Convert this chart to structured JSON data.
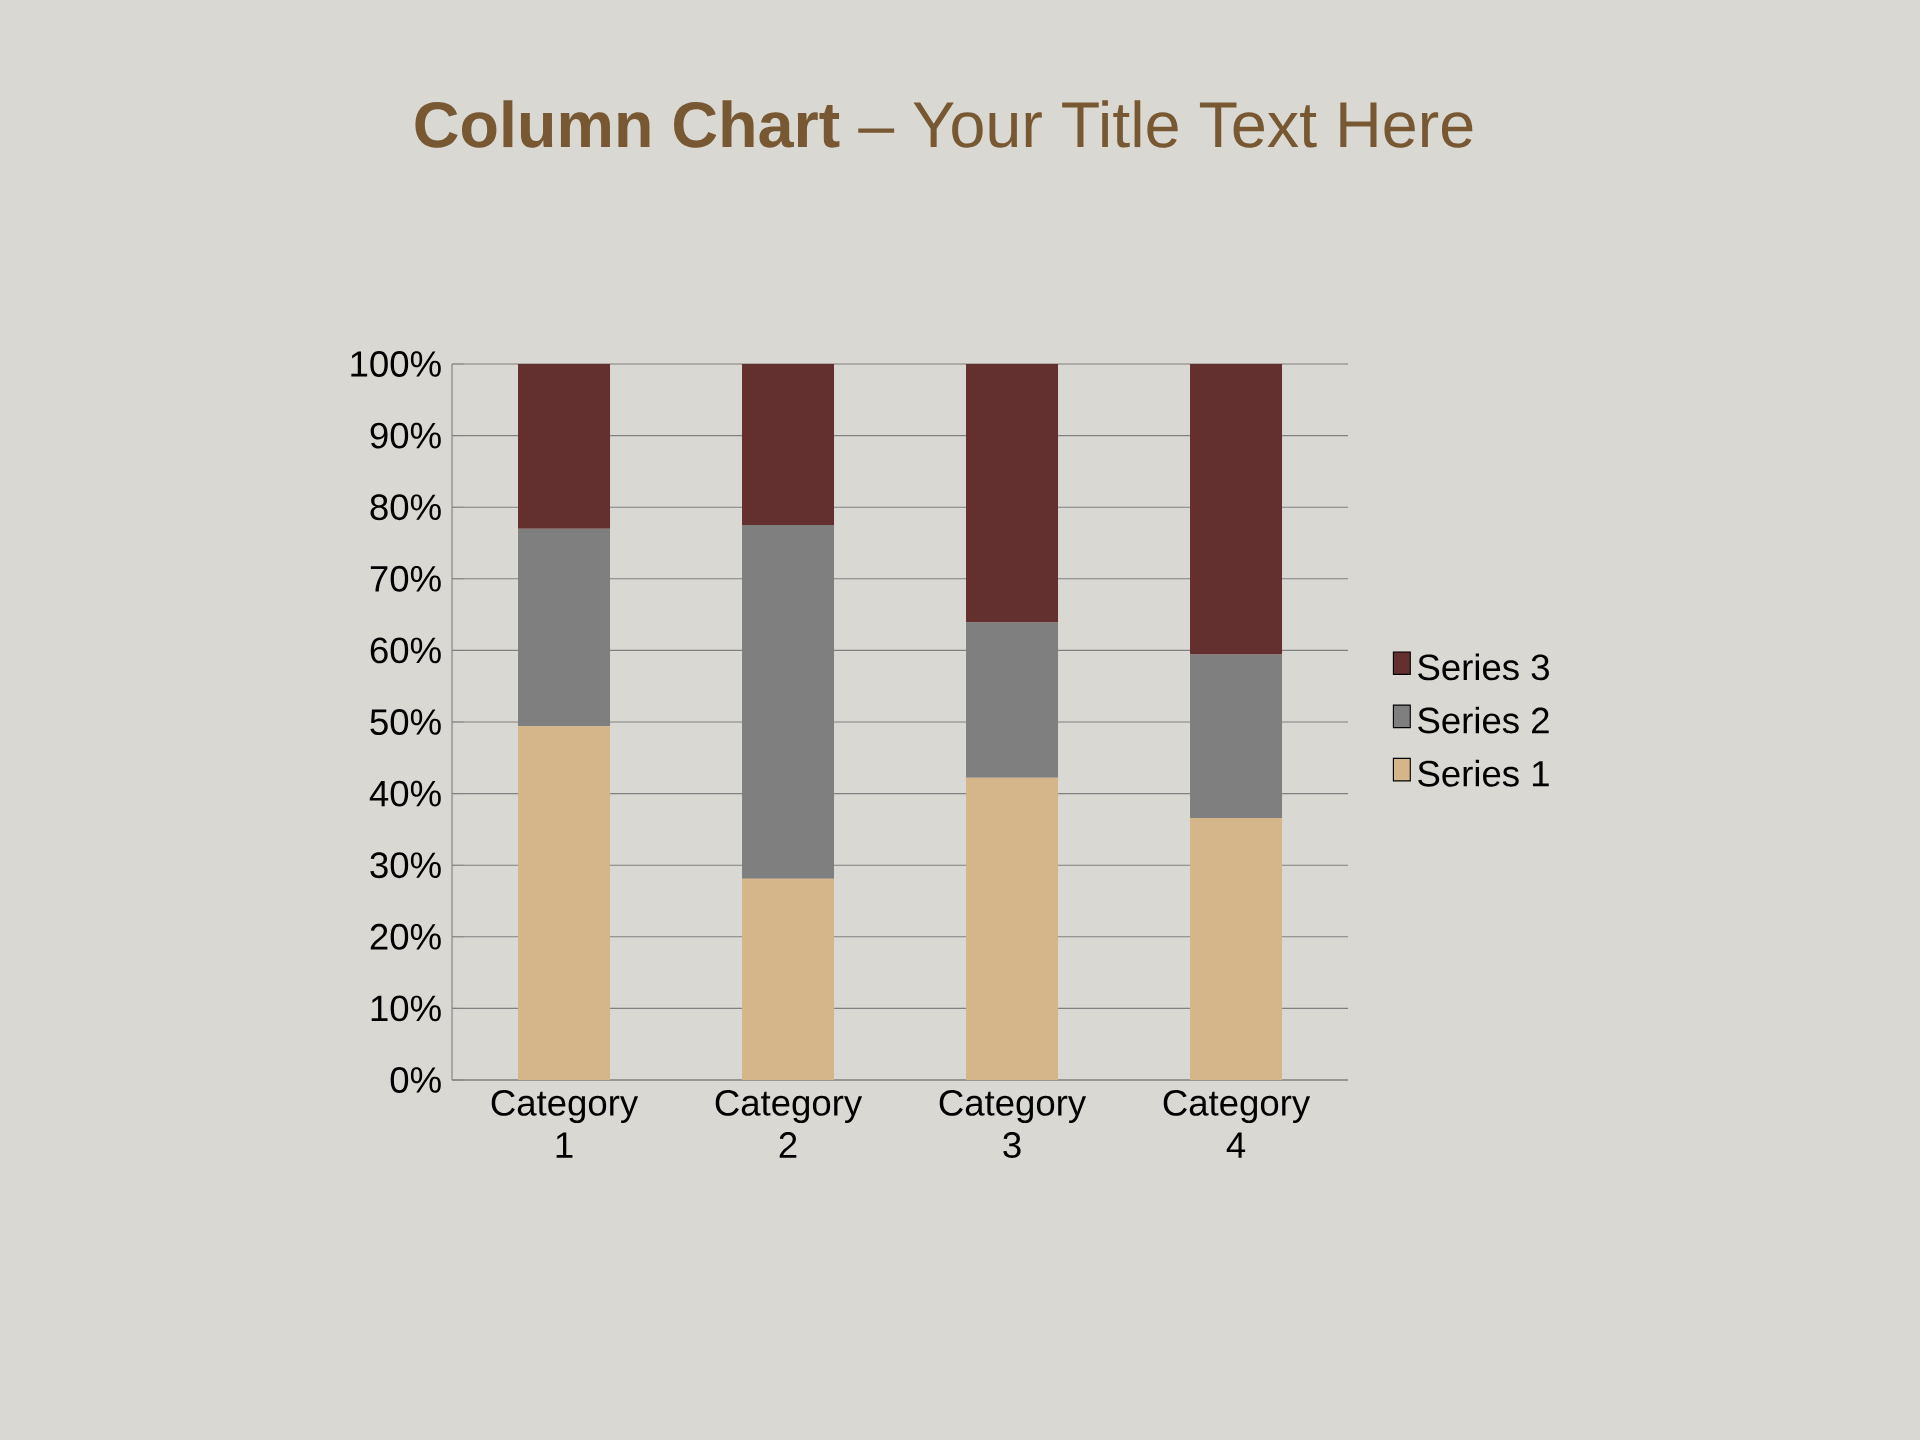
{
  "chart_data": {
    "type": "bar",
    "stacked": true,
    "title": "**Column Chart** – Your Title Text Here",
    "categories": [
      "Category 1",
      "Category 2",
      "Category 3",
      "Category 4"
    ],
    "series": [
      {
        "name": "Series 1",
        "color": "#d4b68a",
        "values": [
          49.4,
          28.1,
          42.2,
          36.6
        ]
      },
      {
        "name": "Series 2",
        "color": "#7f7f7f",
        "values": [
          27.6,
          49.4,
          21.7,
          22.8
        ]
      },
      {
        "name": "Series 3",
        "color": "#632f2f",
        "values": [
          23.0,
          22.5,
          36.1,
          40.6
        ]
      }
    ],
    "ylim": [
      0,
      100
    ],
    "yticks": [
      {
        "value": 0,
        "label": "0%"
      },
      {
        "value": 10,
        "label": "10%"
      },
      {
        "value": 20,
        "label": "20%"
      },
      {
        "value": 30,
        "label": "30%"
      },
      {
        "value": 40,
        "label": "40%"
      },
      {
        "value": 50,
        "label": "50%"
      },
      {
        "value": 60,
        "label": "60%"
      },
      {
        "value": 70,
        "label": "70%"
      },
      {
        "value": 80,
        "label": "80%"
      },
      {
        "value": 90,
        "label": "90%"
      },
      {
        "value": 100,
        "label": "100%"
      }
    ],
    "grid": "y",
    "legend": "right"
  }
}
